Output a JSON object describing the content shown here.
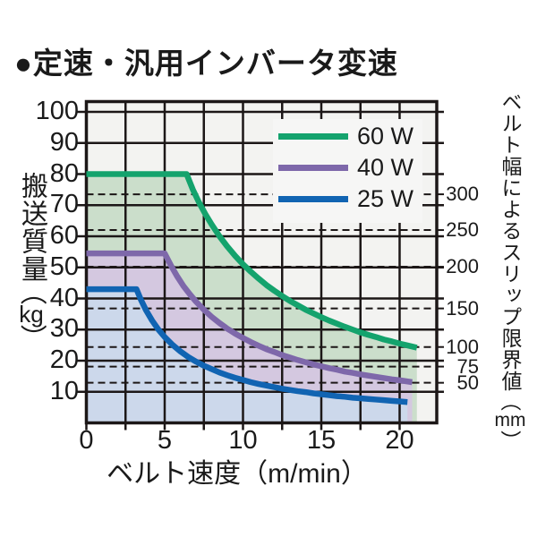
{
  "title": "●定速・汎用インバータ変速",
  "colors": {
    "page_bg": "#ffffff",
    "plot_bg": "#f3f3f1",
    "grid": "#1c1717",
    "legend_bg": "#f6f6f5",
    "text": "#1a1a1a"
  },
  "axes": {
    "x_label": "ベルト速度（m/min）",
    "y_left_title": {
      "pre": "搬送質量",
      "open": "（",
      "unit": "kg",
      "close": "）"
    },
    "y_right_title": {
      "pre": "ベルト幅によるスリップ限界値",
      "open": "（",
      "unit": "mm",
      "close": "）"
    }
  },
  "chart_data": {
    "type": "area",
    "title": "定速・汎用インバータ変速",
    "xlabel": "ベルト速度（m/min）",
    "ylabel": "搬送質量（kg）",
    "ylabel_right": "ベルト幅によるスリップ限界値（mm）",
    "xlim": [
      0,
      22.3
    ],
    "ylim": [
      0,
      103.5
    ],
    "grid": true,
    "x_grid_step": 2.5,
    "x_major_ticks": [
      0,
      5,
      10,
      15,
      20
    ],
    "y_major_ticks": [
      10,
      20,
      30,
      40,
      50,
      60,
      70,
      80,
      90,
      100
    ],
    "right_axis_map": [
      {
        "label": "300",
        "mm": 300,
        "kg": 73.5
      },
      {
        "label": "250",
        "mm": 250,
        "kg": 62.0
      },
      {
        "label": "200",
        "mm": 200,
        "kg": 50.2
      },
      {
        "label": "150",
        "mm": 150,
        "kg": 36.8
      },
      {
        "label": "100",
        "mm": 100,
        "kg": 24.4
      },
      {
        "label": "75",
        "mm": 75,
        "kg": 18.1
      },
      {
        "label": "50",
        "mm": 50,
        "kg": 12.9
      }
    ],
    "legend_position": "top-right",
    "series": [
      {
        "id": "60w",
        "name": "60 W",
        "line_color": "#14a36d",
        "fill_color": "#cbdecb",
        "flat_value_kg": 80,
        "flat_until_x": 6.4,
        "points": [
          [
            0,
            80
          ],
          [
            6.4,
            80
          ],
          [
            6.8,
            75
          ],
          [
            7.2,
            70.8
          ],
          [
            7.6,
            67.1
          ],
          [
            8,
            63.8
          ],
          [
            8.5,
            60
          ],
          [
            9,
            56.7
          ],
          [
            9.5,
            53.7
          ],
          [
            10,
            51
          ],
          [
            10.5,
            48.6
          ],
          [
            11,
            46.4
          ],
          [
            11.5,
            44.3
          ],
          [
            12,
            42.5
          ],
          [
            12.5,
            40.8
          ],
          [
            13,
            39.2
          ],
          [
            13.5,
            37.8
          ],
          [
            14,
            36.4
          ],
          [
            14.5,
            35.2
          ],
          [
            15,
            34
          ],
          [
            15.5,
            32.9
          ],
          [
            16,
            31.9
          ],
          [
            16.5,
            30.9
          ],
          [
            17,
            30
          ],
          [
            17.5,
            29.1
          ],
          [
            18,
            28.3
          ],
          [
            18.5,
            27.6
          ],
          [
            19,
            26.8
          ],
          [
            19.5,
            26.2
          ],
          [
            20,
            25.5
          ],
          [
            20.5,
            24.9
          ],
          [
            21.1,
            24.2
          ]
        ]
      },
      {
        "id": "40w",
        "name": "40 W",
        "line_color": "#7e68aa",
        "fill_color": "#d4c8e0",
        "flat_value_kg": 54.5,
        "flat_until_x": 5.0,
        "points": [
          [
            0,
            54.5
          ],
          [
            5,
            54.5
          ],
          [
            5.4,
            50.6
          ],
          [
            5.8,
            47.1
          ],
          [
            6.2,
            44
          ],
          [
            6.6,
            41.4
          ],
          [
            7,
            39
          ],
          [
            7.5,
            36.4
          ],
          [
            8,
            34.1
          ],
          [
            8.5,
            32.1
          ],
          [
            9,
            30.3
          ],
          [
            9.5,
            28.7
          ],
          [
            10,
            27.3
          ],
          [
            10.5,
            26
          ],
          [
            11,
            24.8
          ],
          [
            11.5,
            23.7
          ],
          [
            12,
            22.8
          ],
          [
            12.5,
            21.8
          ],
          [
            13,
            21
          ],
          [
            13.5,
            20.2
          ],
          [
            14,
            19.5
          ],
          [
            14.5,
            18.8
          ],
          [
            15,
            18.2
          ],
          [
            15.5,
            17.6
          ],
          [
            16,
            17.1
          ],
          [
            16.5,
            16.5
          ],
          [
            17,
            16.1
          ],
          [
            17.5,
            15.6
          ],
          [
            18,
            15.2
          ],
          [
            18.5,
            14.8
          ],
          [
            19,
            14.4
          ],
          [
            19.5,
            14
          ],
          [
            20,
            13.7
          ],
          [
            20.8,
            13.1
          ]
        ]
      },
      {
        "id": "25w",
        "name": "25 W",
        "line_color": "#1164b2",
        "fill_color": "#ccd8eb",
        "flat_value_kg": 43,
        "flat_until_x": 3.2,
        "points": [
          [
            0,
            43
          ],
          [
            3.2,
            43
          ],
          [
            3.5,
            39.4
          ],
          [
            3.8,
            36.3
          ],
          [
            4.2,
            32.9
          ],
          [
            4.6,
            30
          ],
          [
            5,
            27.6
          ],
          [
            5.5,
            25.1
          ],
          [
            6,
            23
          ],
          [
            6.5,
            21.2
          ],
          [
            7,
            19.7
          ],
          [
            7.5,
            18.4
          ],
          [
            8,
            17.3
          ],
          [
            8.5,
            16.2
          ],
          [
            9,
            15.3
          ],
          [
            9.5,
            14.5
          ],
          [
            10,
            13.8
          ],
          [
            10.5,
            13.1
          ],
          [
            11,
            12.5
          ],
          [
            11.5,
            12
          ],
          [
            12,
            11.5
          ],
          [
            12.5,
            11
          ],
          [
            13,
            10.6
          ],
          [
            13.5,
            10.2
          ],
          [
            14,
            9.9
          ],
          [
            14.5,
            9.5
          ],
          [
            15,
            9.2
          ],
          [
            15.5,
            8.9
          ],
          [
            16,
            8.6
          ],
          [
            16.5,
            8.4
          ],
          [
            17,
            8.1
          ],
          [
            17.5,
            7.9
          ],
          [
            18,
            7.7
          ],
          [
            18.5,
            7.5
          ],
          [
            19,
            7.3
          ],
          [
            19.5,
            7.1
          ],
          [
            20,
            6.9
          ],
          [
            20.5,
            6.7
          ]
        ]
      }
    ]
  }
}
